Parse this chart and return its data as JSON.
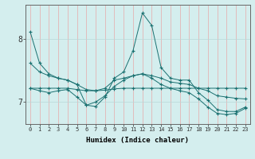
{
  "xlabel": "Humidex (Indice chaleur)",
  "bg_color": "#d4eeee",
  "line_color": "#1a7070",
  "grid_color_v": "#e8a8a8",
  "grid_color_h": "#b8d8d8",
  "xlim": [
    -0.5,
    23.5
  ],
  "ylim": [
    6.65,
    8.55
  ],
  "yticks": [
    7,
    8
  ],
  "xticks": [
    0,
    1,
    2,
    3,
    4,
    5,
    6,
    7,
    8,
    9,
    10,
    11,
    12,
    13,
    14,
    15,
    16,
    17,
    18,
    19,
    20,
    21,
    22,
    23
  ],
  "series": [
    [
      8.12,
      7.62,
      7.45,
      7.38,
      7.35,
      7.28,
      6.95,
      6.93,
      7.08,
      7.38,
      7.48,
      7.82,
      8.42,
      8.22,
      7.55,
      7.38,
      7.35,
      7.35,
      7.15,
      7.03,
      6.88,
      6.85,
      6.85,
      6.92
    ],
    [
      7.62,
      7.48,
      7.42,
      7.38,
      7.35,
      7.28,
      7.2,
      7.18,
      7.22,
      7.35,
      7.38,
      7.42,
      7.45,
      7.42,
      7.38,
      7.32,
      7.3,
      7.28,
      7.22,
      7.18,
      7.1,
      7.08,
      7.06,
      7.05
    ],
    [
      7.22,
      7.22,
      7.22,
      7.22,
      7.22,
      7.2,
      7.18,
      7.18,
      7.19,
      7.21,
      7.22,
      7.22,
      7.22,
      7.22,
      7.22,
      7.22,
      7.22,
      7.22,
      7.22,
      7.22,
      7.22,
      7.22,
      7.22,
      7.22
    ],
    [
      7.22,
      7.18,
      7.15,
      7.18,
      7.2,
      7.08,
      6.95,
      7.0,
      7.1,
      7.25,
      7.35,
      7.42,
      7.45,
      7.38,
      7.28,
      7.22,
      7.18,
      7.15,
      7.05,
      6.92,
      6.82,
      6.8,
      6.82,
      6.9
    ]
  ]
}
